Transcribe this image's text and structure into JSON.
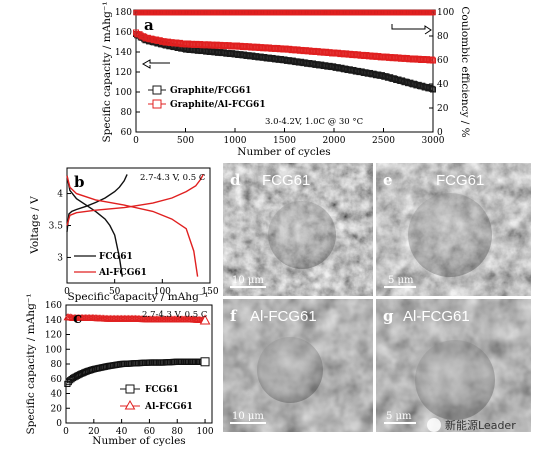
{
  "chart_data": [
    {
      "panel": "a",
      "type": "scatter",
      "xlabel": "Number of cycles",
      "ylabel": "Specific capacity / mAhg⁻¹",
      "y2label": "Coulombic efficiency / %",
      "xlim": [
        0,
        3000
      ],
      "ylim": [
        60,
        180
      ],
      "y2lim": [
        0,
        100
      ],
      "xticks": [
        0,
        500,
        1000,
        1500,
        2000,
        2500,
        3000
      ],
      "yticks": [
        60,
        80,
        100,
        120,
        140,
        160,
        180
      ],
      "y2ticks": [
        0,
        20,
        40,
        60,
        80,
        100
      ],
      "annotation": "3.0-4.2V, 1.0C @ 30 °C",
      "legend": "bottom-left",
      "series": [
        {
          "name": "Graphite/FCG61",
          "color": "#1a1a1a",
          "x": [
            0,
            100,
            300,
            500,
            1000,
            1500,
            2000,
            2500,
            2800,
            3000
          ],
          "y": [
            158,
            152,
            147,
            143,
            138,
            132,
            125,
            116,
            108,
            103
          ]
        },
        {
          "name": "Graphite/Al-FCG61",
          "color": "#e02020",
          "x": [
            0,
            100,
            300,
            500,
            1000,
            1500,
            2000,
            2500,
            2800,
            3000
          ],
          "y": [
            159,
            154,
            150,
            148,
            146,
            143,
            139,
            135,
            133,
            132
          ]
        }
      ],
      "ce_series": [
        {
          "color": "#1a1a1a",
          "x": [
            0,
            3000
          ],
          "y": [
            99.8,
            99.8
          ]
        },
        {
          "color": "#e02020",
          "x": [
            0,
            3000
          ],
          "y": [
            99.5,
            99.5
          ]
        }
      ]
    },
    {
      "panel": "b",
      "type": "line",
      "xlabel": "Specific capacity / mAhg⁻¹",
      "ylabel": "Voltage / V",
      "xlim": [
        0,
        150
      ],
      "ylim": [
        2.6,
        4.4
      ],
      "xticks": [
        0,
        50,
        100,
        150
      ],
      "yticks": [
        2.5,
        3.0,
        3.5,
        4.0
      ],
      "annotation": "2.7-4.3 V, 0.5 C",
      "legend": "bottom-left",
      "series": [
        {
          "name": "FCG61",
          "color": "#111111",
          "charge": {
            "x": [
              0,
              2,
              5,
              10,
              20,
              30,
              40,
              50,
              55,
              60,
              63
            ],
            "y": [
              3.4,
              3.68,
              3.72,
              3.75,
              3.8,
              3.86,
              3.93,
              4.03,
              4.1,
              4.2,
              4.3
            ]
          },
          "discharge": {
            "x": [
              0,
              3,
              10,
              20,
              30,
              40,
              45,
              50,
              55,
              58
            ],
            "y": [
              4.28,
              4.05,
              3.92,
              3.82,
              3.72,
              3.6,
              3.5,
              3.35,
              3.0,
              2.7
            ]
          }
        },
        {
          "name": "Al-FCG61",
          "color": "#e02020",
          "charge": {
            "x": [
              0,
              3,
              10,
              30,
              60,
              90,
              110,
              125,
              135,
              140,
              143
            ],
            "y": [
              3.5,
              3.66,
              3.7,
              3.74,
              3.78,
              3.85,
              3.93,
              4.03,
              4.12,
              4.22,
              4.3
            ]
          },
          "discharge": {
            "x": [
              0,
              3,
              10,
              30,
              60,
              90,
              110,
              125,
              133,
              137
            ],
            "y": [
              4.28,
              4.1,
              4.0,
              3.9,
              3.82,
              3.72,
              3.6,
              3.45,
              3.1,
              2.7
            ]
          }
        }
      ]
    },
    {
      "panel": "c",
      "type": "scatter",
      "xlabel": "Number of cycles",
      "ylabel": "Specific capacity / mAhg⁻¹",
      "xlim": [
        0,
        105
      ],
      "ylim": [
        0,
        160
      ],
      "xticks": [
        0,
        20,
        40,
        60,
        80,
        100
      ],
      "yticks": [
        0,
        20,
        40,
        60,
        80,
        100,
        120,
        140,
        160
      ],
      "annotation": "2.7-4.3 V, 0.5 C",
      "legend": "bottom-right",
      "series": [
        {
          "name": "FCG61",
          "color": "#111111",
          "marker": "square",
          "x": [
            1,
            3,
            5,
            10,
            15,
            20,
            30,
            40,
            50,
            60,
            70,
            80,
            90,
            100
          ],
          "y": [
            53,
            58,
            61,
            66,
            70,
            73,
            77,
            80,
            81,
            82,
            82,
            83,
            83,
            83
          ]
        },
        {
          "name": "Al-FCG61",
          "color": "#e02020",
          "marker": "triangle",
          "x": [
            1,
            3,
            5,
            10,
            20,
            30,
            40,
            50,
            60,
            70,
            80,
            90,
            100
          ],
          "y": [
            143,
            143,
            142,
            142,
            142,
            141,
            141,
            141,
            140,
            140,
            140,
            140,
            139
          ]
        }
      ]
    }
  ],
  "sem": {
    "d": {
      "letter": "d",
      "title": "FCG61",
      "scale": "10 μm"
    },
    "e": {
      "letter": "e",
      "title": "FCG61",
      "scale": "5 μm"
    },
    "f": {
      "letter": "f",
      "title": "Al-FCG61",
      "scale": "10 μm"
    },
    "g": {
      "letter": "g",
      "title": "Al-FCG61",
      "scale": "5 μm"
    }
  },
  "watermark": "新能源Leader"
}
